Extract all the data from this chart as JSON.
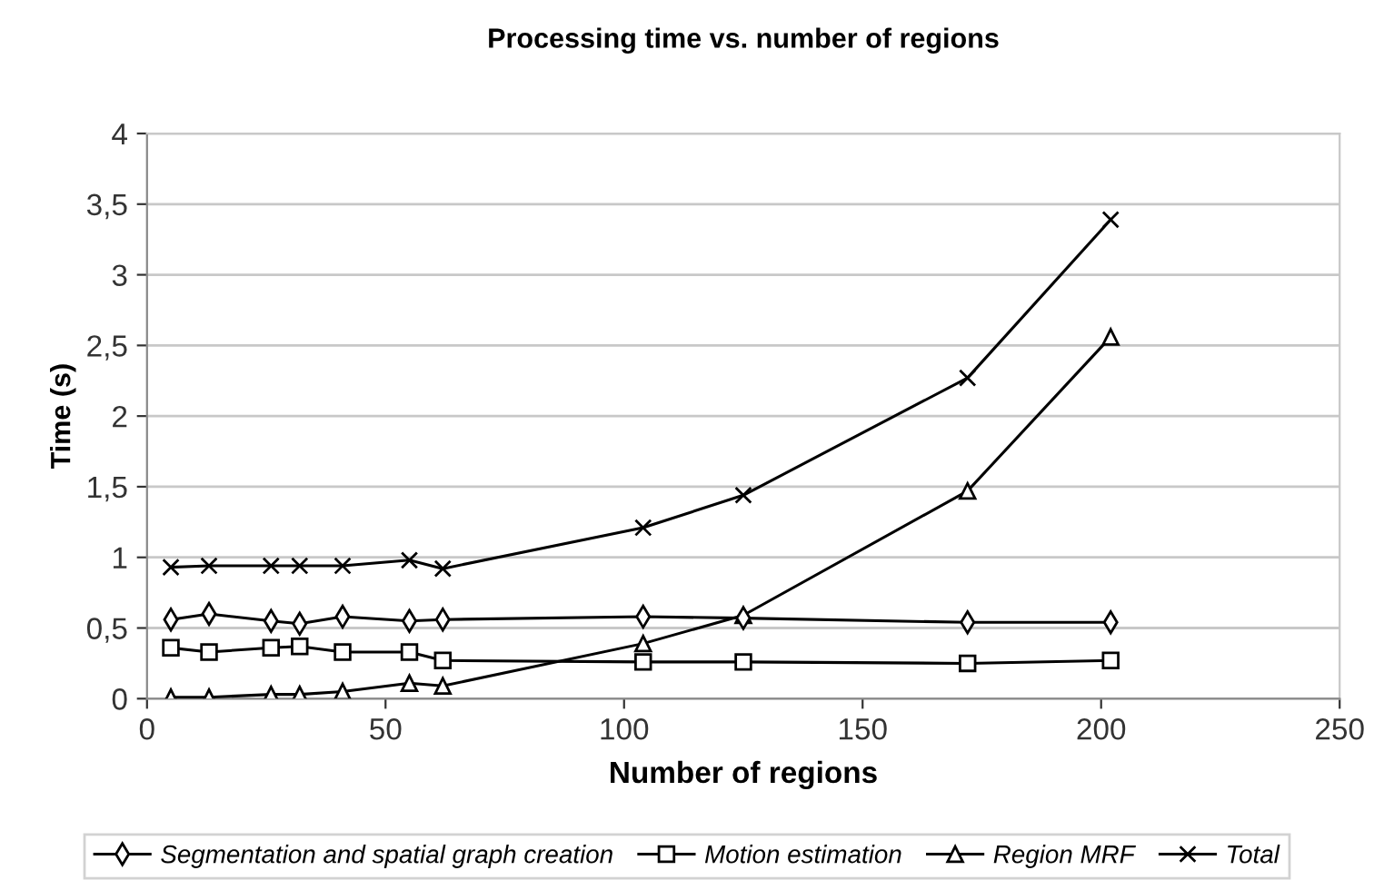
{
  "chart_data": {
    "type": "line",
    "title": "Processing time vs. number of regions",
    "xlabel": "Number of regions",
    "ylabel": "Time (s)",
    "xlim": [
      0,
      250
    ],
    "xticks": [
      0,
      50,
      100,
      150,
      200,
      250
    ],
    "ylim": [
      0,
      4
    ],
    "yticks": [
      0,
      {
        "value": 0.5,
        "label": "0,5"
      },
      1,
      {
        "value": 1.5,
        "label": "1,5"
      },
      2,
      {
        "value": 2.5,
        "label": "2,5"
      },
      3,
      {
        "value": 3.5,
        "label": "3,5"
      },
      4
    ],
    "grid": "y",
    "legend": "bottom",
    "series": [
      {
        "name": "Segmentation and spatial graph creation",
        "color": "#000000",
        "marker": "diamond",
        "x": [
          5,
          13,
          26,
          32,
          41,
          55,
          62,
          104,
          125,
          172,
          202
        ],
        "values": [
          0.56,
          0.6,
          0.55,
          0.53,
          0.58,
          0.55,
          0.56,
          0.58,
          0.57,
          0.54,
          0.54
        ]
      },
      {
        "name": "Motion estimation",
        "color": "#000000",
        "marker": "square",
        "x": [
          5,
          13,
          26,
          32,
          41,
          55,
          62,
          104,
          125,
          172,
          202
        ],
        "values": [
          0.36,
          0.33,
          0.36,
          0.37,
          0.33,
          0.33,
          0.27,
          0.26,
          0.26,
          0.25,
          0.27
        ]
      },
      {
        "name": "Region MRF",
        "color": "#000000",
        "marker": "triangle",
        "x": [
          5,
          13,
          26,
          32,
          41,
          55,
          62,
          104,
          125,
          172,
          202
        ],
        "values": [
          0.01,
          0.01,
          0.03,
          0.03,
          0.05,
          0.11,
          0.09,
          0.39,
          0.59,
          1.47,
          2.56
        ]
      },
      {
        "name": "Total",
        "color": "#000000",
        "marker": "cross",
        "x": [
          5,
          13,
          26,
          32,
          41,
          55,
          62,
          104,
          125,
          172,
          202
        ],
        "values": [
          0.93,
          0.94,
          0.94,
          0.94,
          0.94,
          0.98,
          0.92,
          1.21,
          1.44,
          2.27,
          3.39
        ]
      }
    ]
  }
}
